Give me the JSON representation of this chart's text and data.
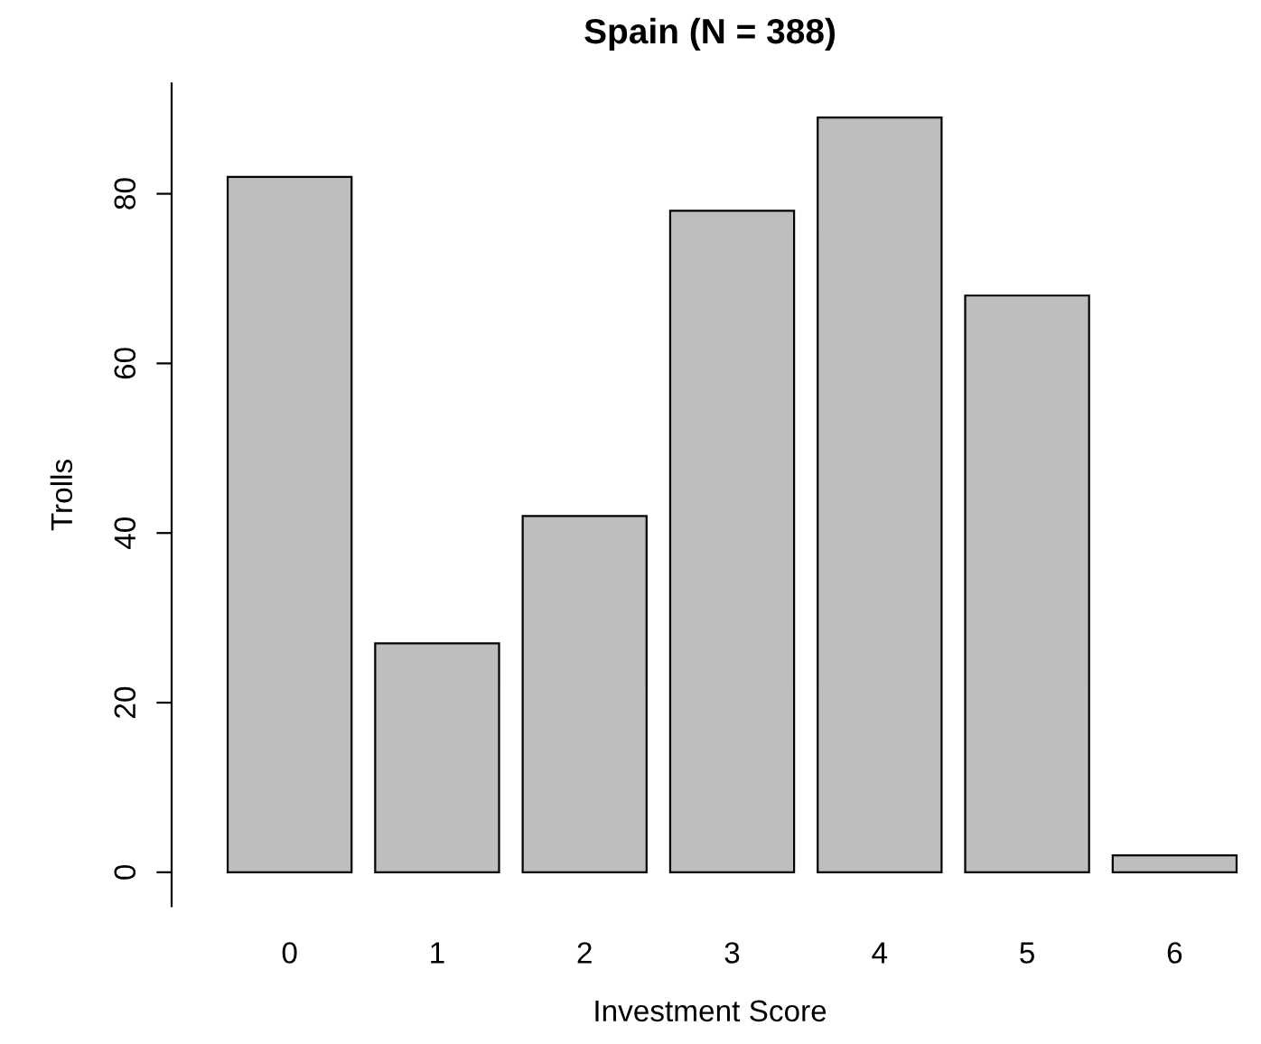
{
  "chart_data": {
    "type": "bar",
    "title": "Spain (N = 388)",
    "xlabel": "Investment Score",
    "ylabel": "Trolls",
    "categories": [
      "0",
      "1",
      "2",
      "3",
      "4",
      "5",
      "6"
    ],
    "values": [
      82,
      27,
      42,
      78,
      89,
      68,
      2
    ],
    "color": "#bebebe",
    "ylim": [
      -4,
      93
    ],
    "yticks": [
      0,
      20,
      40,
      60,
      80
    ],
    "grid": false,
    "legend": false
  }
}
